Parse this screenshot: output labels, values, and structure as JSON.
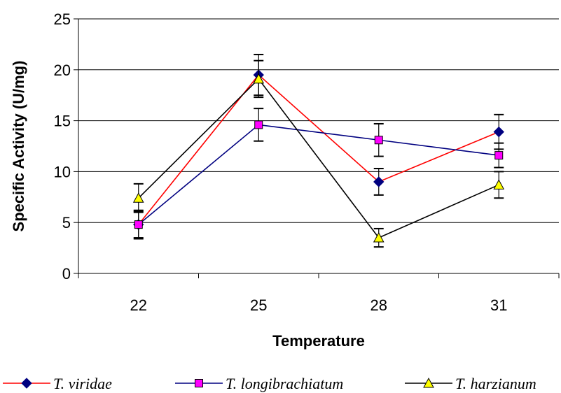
{
  "chart_data": {
    "type": "line",
    "title": "",
    "xlabel": "Temperature",
    "ylabel": "Specific Activity (U/mg)",
    "categories": [
      "22",
      "25",
      "28",
      "31"
    ],
    "ylim": [
      0,
      25
    ],
    "yticks": [
      0,
      5,
      10,
      15,
      20,
      25
    ],
    "grid": true,
    "legend_position": "bottom",
    "series": [
      {
        "name": "T. viridae",
        "values": [
          4.8,
          19.5,
          9.0,
          13.9
        ],
        "error": [
          1.3,
          2.0,
          1.3,
          1.7
        ],
        "line_color": "#ff0000",
        "marker": "diamond",
        "marker_color": "#000080"
      },
      {
        "name": "T. longibrachiatum",
        "values": [
          4.8,
          14.6,
          13.1,
          11.6
        ],
        "error": [
          1.4,
          1.6,
          1.6,
          1.2
        ],
        "line_color": "#000080",
        "marker": "square",
        "marker_color": "#ff00ff"
      },
      {
        "name": "T. harzianum",
        "values": [
          7.4,
          19.1,
          3.5,
          8.7
        ],
        "error": [
          1.4,
          1.8,
          0.9,
          1.3
        ],
        "line_color": "#000000",
        "marker": "triangle",
        "marker_color": "#ffff00"
      }
    ]
  }
}
